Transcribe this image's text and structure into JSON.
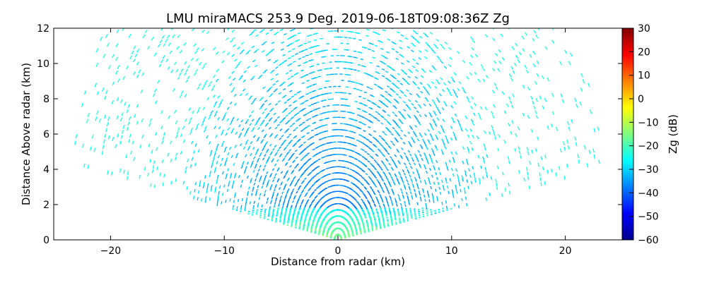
{
  "chart_data": {
    "type": "heatmap",
    "title": "LMU miraMACS 253.9 Deg. 2019-06-18T09:08:36Z  Zg",
    "xlabel": "Distance from radar (km)",
    "ylabel": "Distance Above radar  (km)",
    "xlim": [
      -25,
      25
    ],
    "ylim": [
      0,
      12
    ],
    "xticks": [
      -20,
      -10,
      0,
      10,
      20
    ],
    "yticks": [
      0,
      2,
      4,
      6,
      8,
      10,
      12
    ],
    "colorbar": {
      "label": "Zg (dB)",
      "range": [
        -60,
        30
      ],
      "ticks": [
        30,
        20,
        10,
        0,
        -10,
        -20,
        -30,
        -40,
        -50,
        -60
      ],
      "colormap": "jet"
    },
    "sweep": {
      "max_range_km": 24,
      "min_elevation_deg": 10,
      "max_elevation_deg": 170
    },
    "colors": {
      "background": "#ffffff",
      "axis": "#000000"
    }
  }
}
